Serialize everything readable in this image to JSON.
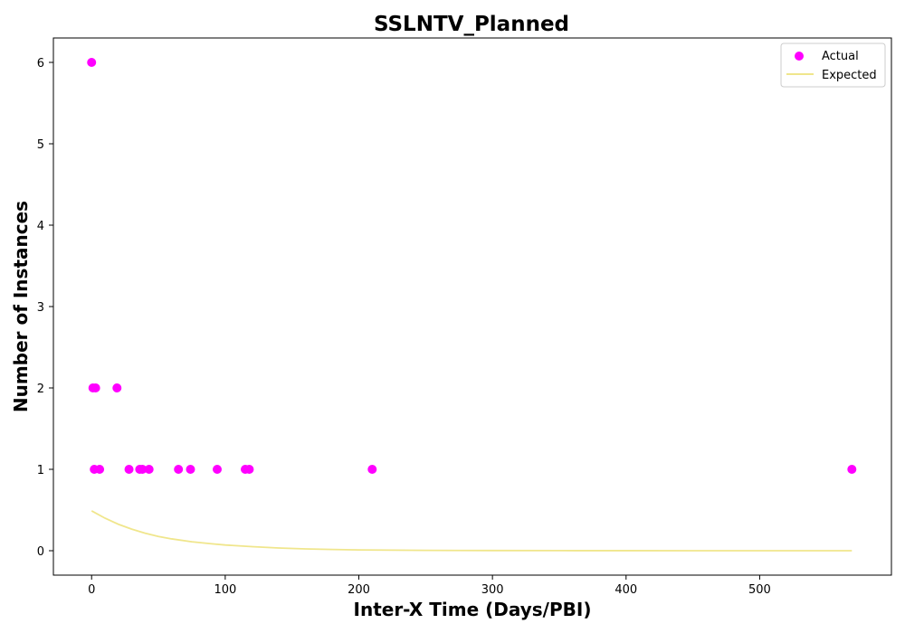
{
  "chart_data": {
    "type": "scatter",
    "title": "SSLNTV_Planned",
    "xlabel": "Inter-X Time (Days/PBI)",
    "ylabel": "Number of Instances",
    "xlim": [
      -28.6,
      598.6
    ],
    "ylim": [
      -0.3,
      6.3
    ],
    "x_ticks": [
      0,
      100,
      200,
      300,
      400,
      500
    ],
    "y_ticks": [
      0,
      1,
      2,
      3,
      4,
      5,
      6
    ],
    "grid": false,
    "legend_position": "top-right",
    "series": [
      {
        "name": "Actual",
        "kind": "scatter",
        "color": "#ff00ff",
        "points": [
          {
            "x": 0,
            "y": 6
          },
          {
            "x": 1,
            "y": 2
          },
          {
            "x": 3,
            "y": 2
          },
          {
            "x": 19,
            "y": 2
          },
          {
            "x": 2,
            "y": 1
          },
          {
            "x": 6,
            "y": 1
          },
          {
            "x": 28,
            "y": 1
          },
          {
            "x": 36,
            "y": 1
          },
          {
            "x": 38,
            "y": 1
          },
          {
            "x": 43,
            "y": 1
          },
          {
            "x": 65,
            "y": 1
          },
          {
            "x": 74,
            "y": 1
          },
          {
            "x": 94,
            "y": 1
          },
          {
            "x": 115,
            "y": 1
          },
          {
            "x": 118,
            "y": 1
          },
          {
            "x": 210,
            "y": 1
          },
          {
            "x": 569,
            "y": 1
          }
        ]
      },
      {
        "name": "Expected",
        "kind": "line",
        "color": "#f0e68c",
        "points": [
          {
            "x": 0,
            "y": 0.49
          },
          {
            "x": 10,
            "y": 0.4
          },
          {
            "x": 20,
            "y": 0.325
          },
          {
            "x": 30,
            "y": 0.265
          },
          {
            "x": 40,
            "y": 0.215
          },
          {
            "x": 50,
            "y": 0.175
          },
          {
            "x": 60,
            "y": 0.145
          },
          {
            "x": 75,
            "y": 0.11
          },
          {
            "x": 90,
            "y": 0.085
          },
          {
            "x": 100,
            "y": 0.07
          },
          {
            "x": 120,
            "y": 0.05
          },
          {
            "x": 140,
            "y": 0.033
          },
          {
            "x": 160,
            "y": 0.022
          },
          {
            "x": 180,
            "y": 0.015
          },
          {
            "x": 200,
            "y": 0.01
          },
          {
            "x": 250,
            "y": 0.004
          },
          {
            "x": 300,
            "y": 0.002
          },
          {
            "x": 350,
            "y": 0.001
          },
          {
            "x": 400,
            "y": 0.0005
          },
          {
            "x": 450,
            "y": 0.0002
          },
          {
            "x": 500,
            "y": 0.0001
          },
          {
            "x": 569,
            "y": 0
          }
        ]
      }
    ]
  }
}
